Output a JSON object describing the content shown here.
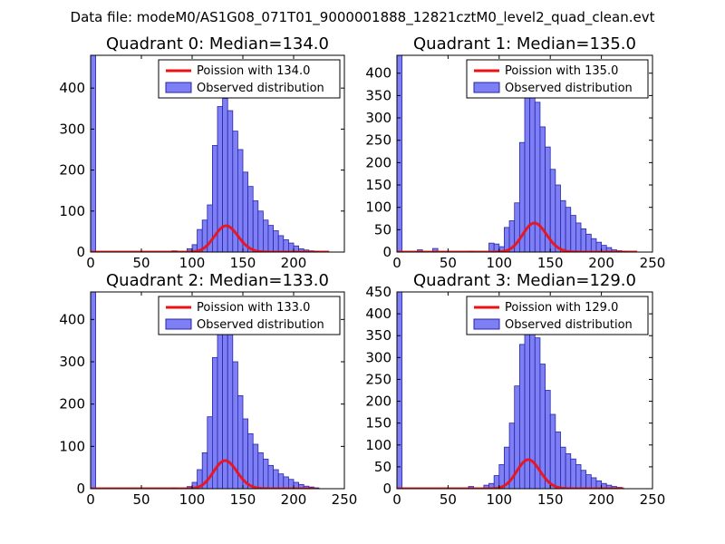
{
  "figure": {
    "title": "Data file: modeM0/AS1G08_071T01_9000001888_12821cztM0_level2_quad_clean.evt"
  },
  "colors": {
    "bar_fill": "#7f7ff5",
    "bar_edge": "#2626a8",
    "poisson_line": "#ee1111",
    "background": "#ffffff"
  },
  "chart_data": [
    {
      "type": "bar",
      "title": "Quadrant 0: Median=134.0",
      "median": 134.0,
      "xlim": [
        0,
        250
      ],
      "ylim": [
        0,
        480
      ],
      "xticks": [
        0,
        50,
        100,
        150,
        200,
        250
      ],
      "yticks": [
        0,
        100,
        200,
        300,
        400
      ],
      "xticklabels": [
        "0",
        "50",
        "100",
        "150",
        "200",
        ""
      ],
      "yticklabels": [
        "0",
        "100",
        "200",
        "300",
        "400"
      ],
      "legend": [
        "Poission with 134.0",
        "Observed distribution"
      ],
      "legend_loc": "top-right",
      "bin_width": 5,
      "bins": [
        [
          0,
          480
        ],
        [
          80,
          3
        ],
        [
          95,
          8
        ],
        [
          100,
          18
        ],
        [
          105,
          55
        ],
        [
          110,
          78
        ],
        [
          115,
          115
        ],
        [
          120,
          260
        ],
        [
          125,
          355
        ],
        [
          130,
          375
        ],
        [
          135,
          345
        ],
        [
          140,
          295
        ],
        [
          145,
          250
        ],
        [
          150,
          195
        ],
        [
          155,
          160
        ],
        [
          160,
          125
        ],
        [
          165,
          100
        ],
        [
          170,
          78
        ],
        [
          175,
          65
        ],
        [
          180,
          52
        ],
        [
          185,
          40
        ],
        [
          190,
          30
        ],
        [
          195,
          22
        ],
        [
          200,
          15
        ],
        [
          205,
          8
        ],
        [
          210,
          5
        ],
        [
          215,
          3
        ],
        [
          220,
          2
        ]
      ],
      "poisson": {
        "mean": 134.0,
        "scale": 1860,
        "x_range": [
          0,
          235
        ]
      }
    },
    {
      "type": "bar",
      "title": "Quadrant 1: Median=135.0",
      "median": 135.0,
      "xlim": [
        0,
        250
      ],
      "ylim": [
        0,
        440
      ],
      "xticks": [
        0,
        50,
        100,
        150,
        200,
        250
      ],
      "yticks": [
        0,
        50,
        100,
        150,
        200,
        250,
        300,
        350,
        400
      ],
      "xticklabels": [
        "0",
        "50",
        "100",
        "150",
        "200",
        "250"
      ],
      "yticklabels": [
        "0",
        "50",
        "100",
        "150",
        "200",
        "250",
        "300",
        "350",
        "400"
      ],
      "legend": [
        "Poission with 135.0",
        "Observed distribution"
      ],
      "legend_loc": "top-right",
      "bin_width": 5,
      "bins": [
        [
          0,
          440
        ],
        [
          20,
          5
        ],
        [
          35,
          8
        ],
        [
          70,
          2
        ],
        [
          90,
          20
        ],
        [
          95,
          18
        ],
        [
          100,
          12
        ],
        [
          105,
          55
        ],
        [
          110,
          70
        ],
        [
          115,
          110
        ],
        [
          120,
          245
        ],
        [
          125,
          355
        ],
        [
          130,
          370
        ],
        [
          135,
          335
        ],
        [
          140,
          280
        ],
        [
          145,
          235
        ],
        [
          150,
          185
        ],
        [
          155,
          150
        ],
        [
          160,
          115
        ],
        [
          165,
          100
        ],
        [
          170,
          82
        ],
        [
          175,
          65
        ],
        [
          180,
          52
        ],
        [
          185,
          40
        ],
        [
          190,
          30
        ],
        [
          195,
          22
        ],
        [
          200,
          15
        ],
        [
          205,
          10
        ],
        [
          210,
          5
        ],
        [
          215,
          3
        ],
        [
          220,
          2
        ]
      ],
      "poisson": {
        "mean": 135.0,
        "scale": 1890,
        "x_range": [
          0,
          235
        ]
      }
    },
    {
      "type": "bar",
      "title": "Quadrant 2: Median=133.0",
      "median": 133.0,
      "xlim": [
        0,
        250
      ],
      "ylim": [
        0,
        465
      ],
      "xticks": [
        0,
        50,
        100,
        150,
        200,
        250
      ],
      "yticks": [
        0,
        100,
        200,
        300,
        400
      ],
      "xticklabels": [
        "0",
        "50",
        "100",
        "150",
        "200",
        "250"
      ],
      "yticklabels": [
        "0",
        "100",
        "200",
        "300",
        "400"
      ],
      "legend": [
        "Poission with 133.0",
        "Observed distribution"
      ],
      "legend_loc": "top-right",
      "bin_width": 5,
      "bins": [
        [
          0,
          465
        ],
        [
          80,
          2
        ],
        [
          95,
          5
        ],
        [
          100,
          15
        ],
        [
          105,
          45
        ],
        [
          110,
          85
        ],
        [
          115,
          170
        ],
        [
          120,
          310
        ],
        [
          125,
          385
        ],
        [
          130,
          395
        ],
        [
          135,
          375
        ],
        [
          140,
          300
        ],
        [
          145,
          220
        ],
        [
          150,
          165
        ],
        [
          155,
          130
        ],
        [
          160,
          105
        ],
        [
          165,
          85
        ],
        [
          170,
          70
        ],
        [
          175,
          55
        ],
        [
          180,
          45
        ],
        [
          185,
          35
        ],
        [
          190,
          28
        ],
        [
          195,
          22
        ],
        [
          200,
          15
        ],
        [
          205,
          10
        ],
        [
          210,
          6
        ],
        [
          215,
          4
        ],
        [
          220,
          2
        ]
      ],
      "poisson": {
        "mean": 133.0,
        "scale": 1920,
        "x_range": [
          0,
          222
        ]
      }
    },
    {
      "type": "bar",
      "title": "Quadrant 3: Median=129.0",
      "median": 129.0,
      "xlim": [
        0,
        250
      ],
      "ylim": [
        0,
        450
      ],
      "xticks": [
        0,
        50,
        100,
        150,
        200,
        250
      ],
      "yticks": [
        0,
        50,
        100,
        150,
        200,
        250,
        300,
        350,
        400,
        450
      ],
      "xticklabels": [
        "0",
        "50",
        "100",
        "150",
        "200",
        "250"
      ],
      "yticklabels": [
        "0",
        "50",
        "100",
        "150",
        "200",
        "250",
        "300",
        "350",
        "400",
        "450"
      ],
      "legend": [
        "Poission with 129.0",
        "Observed distribution"
      ],
      "legend_loc": "top-right",
      "bin_width": 5,
      "bins": [
        [
          0,
          450
        ],
        [
          70,
          5
        ],
        [
          85,
          8
        ],
        [
          90,
          12
        ],
        [
          95,
          30
        ],
        [
          100,
          55
        ],
        [
          105,
          95
        ],
        [
          110,
          150
        ],
        [
          115,
          235
        ],
        [
          120,
          330
        ],
        [
          125,
          390
        ],
        [
          130,
          395
        ],
        [
          135,
          345
        ],
        [
          140,
          285
        ],
        [
          145,
          225
        ],
        [
          150,
          170
        ],
        [
          155,
          130
        ],
        [
          160,
          95
        ],
        [
          165,
          80
        ],
        [
          170,
          68
        ],
        [
          175,
          55
        ],
        [
          180,
          42
        ],
        [
          185,
          32
        ],
        [
          190,
          25
        ],
        [
          195,
          18
        ],
        [
          200,
          12
        ],
        [
          205,
          8
        ],
        [
          210,
          5
        ],
        [
          215,
          3
        ]
      ],
      "poisson": {
        "mean": 129.0,
        "scale": 1890,
        "x_range": [
          0,
          222
        ]
      }
    }
  ]
}
